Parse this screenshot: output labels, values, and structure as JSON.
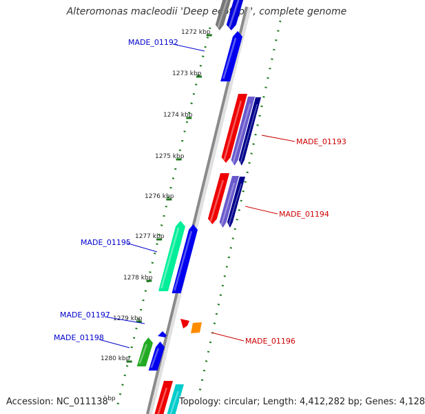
{
  "title": "Alteromonas macleodii 'Deep ecotype', complete genome",
  "accession": "Accession: NC_011138",
  "topology": "Topology: circular; Length: 4,412,282 bp; Genes: 4,128",
  "truncated_tick_label": "kbp",
  "colors": {
    "forward_label": "#0000cc",
    "reverse_label": "#cc0000",
    "tick": "#1e7a1e",
    "backbone": "#999999"
  },
  "scale_ticks": [
    {
      "label": "1272 kbp",
      "kbp": 1272
    },
    {
      "label": "1273 kbp",
      "kbp": 1273
    },
    {
      "label": "1274 kbp",
      "kbp": 1274
    },
    {
      "label": "1275 kbp",
      "kbp": 1275
    },
    {
      "label": "1276 kbp",
      "kbp": 1276
    },
    {
      "label": "1277 kbp",
      "kbp": 1277
    },
    {
      "label": "1278 kbp",
      "kbp": 1278
    },
    {
      "label": "1279 kbp",
      "kbp": 1279
    },
    {
      "label": "1280 kbp",
      "kbp": 1280
    }
  ],
  "gene_labels": [
    {
      "name": "MADE_01192",
      "strand": "forward"
    },
    {
      "name": "MADE_01193",
      "strand": "reverse"
    },
    {
      "name": "MADE_01194",
      "strand": "reverse"
    },
    {
      "name": "MADE_01195",
      "strand": "forward"
    },
    {
      "name": "MADE_01196",
      "strand": "reverse"
    },
    {
      "name": "MADE_01197",
      "strand": "forward"
    },
    {
      "name": "MADE_01198",
      "strand": "forward"
    }
  ]
}
